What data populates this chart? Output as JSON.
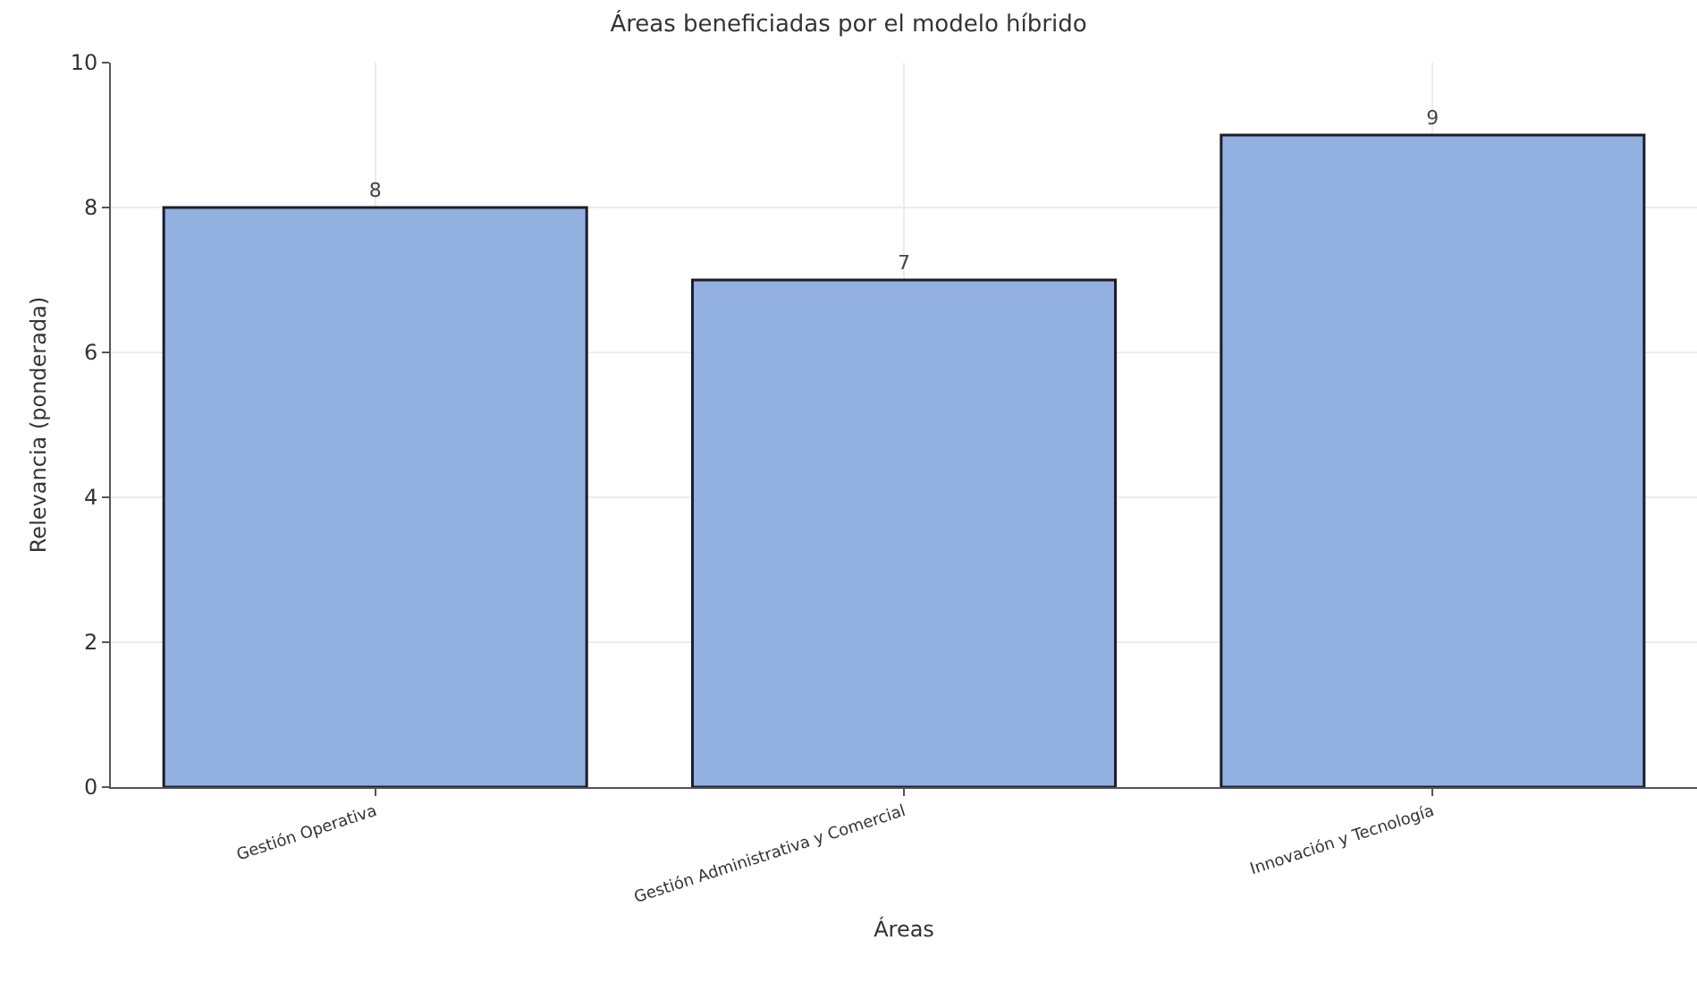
{
  "chart_data": {
    "type": "bar",
    "title": "Áreas beneficiadas por el modelo híbrido",
    "xlabel": "Áreas",
    "ylabel": "Relevancia (ponderada)",
    "categories": [
      "Gestión Operativa",
      "Gestión Administrativa y Comercial",
      "Innovación y Tecnología"
    ],
    "values": [
      8,
      7,
      9
    ],
    "color": "#92b0e0",
    "ylim": [
      0,
      10
    ],
    "yticks": [
      0,
      2,
      4,
      6,
      8,
      10
    ],
    "grid": true,
    "data_labels": true
  }
}
